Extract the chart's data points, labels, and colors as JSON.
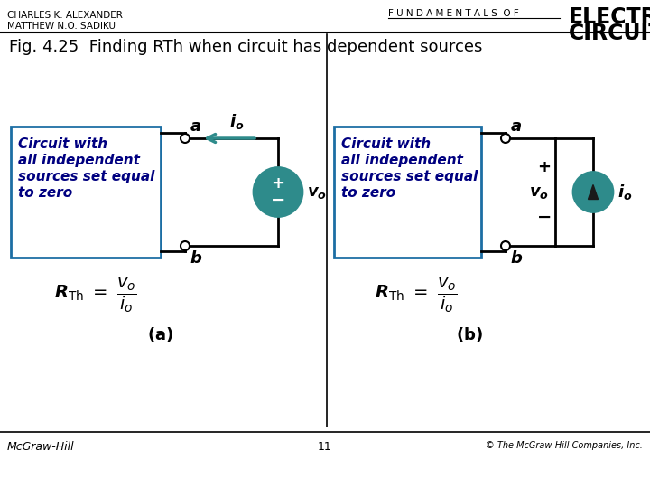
{
  "title_fig": "Fig. 4.25  Finding RTh when circuit has dependent sources",
  "header_left1": "CHARLES K. ALEXANDER",
  "header_left2": "MATTHEW N.O. SADIKU",
  "header_center": "FUNDAMENTALS OF",
  "header_right1": "ELECTRIC",
  "header_right2": "CIRCUITS",
  "footer_left": "McGraw-Hill",
  "footer_center": "11",
  "footer_right": "© The McGraw-Hill Companies, Inc.",
  "bg_color": "#ffffff",
  "box_color": "#1c6ea4",
  "teal_color": "#2e8b8b",
  "box_text_color": "#000080",
  "sub_a": "(a)",
  "sub_b": "(b)"
}
